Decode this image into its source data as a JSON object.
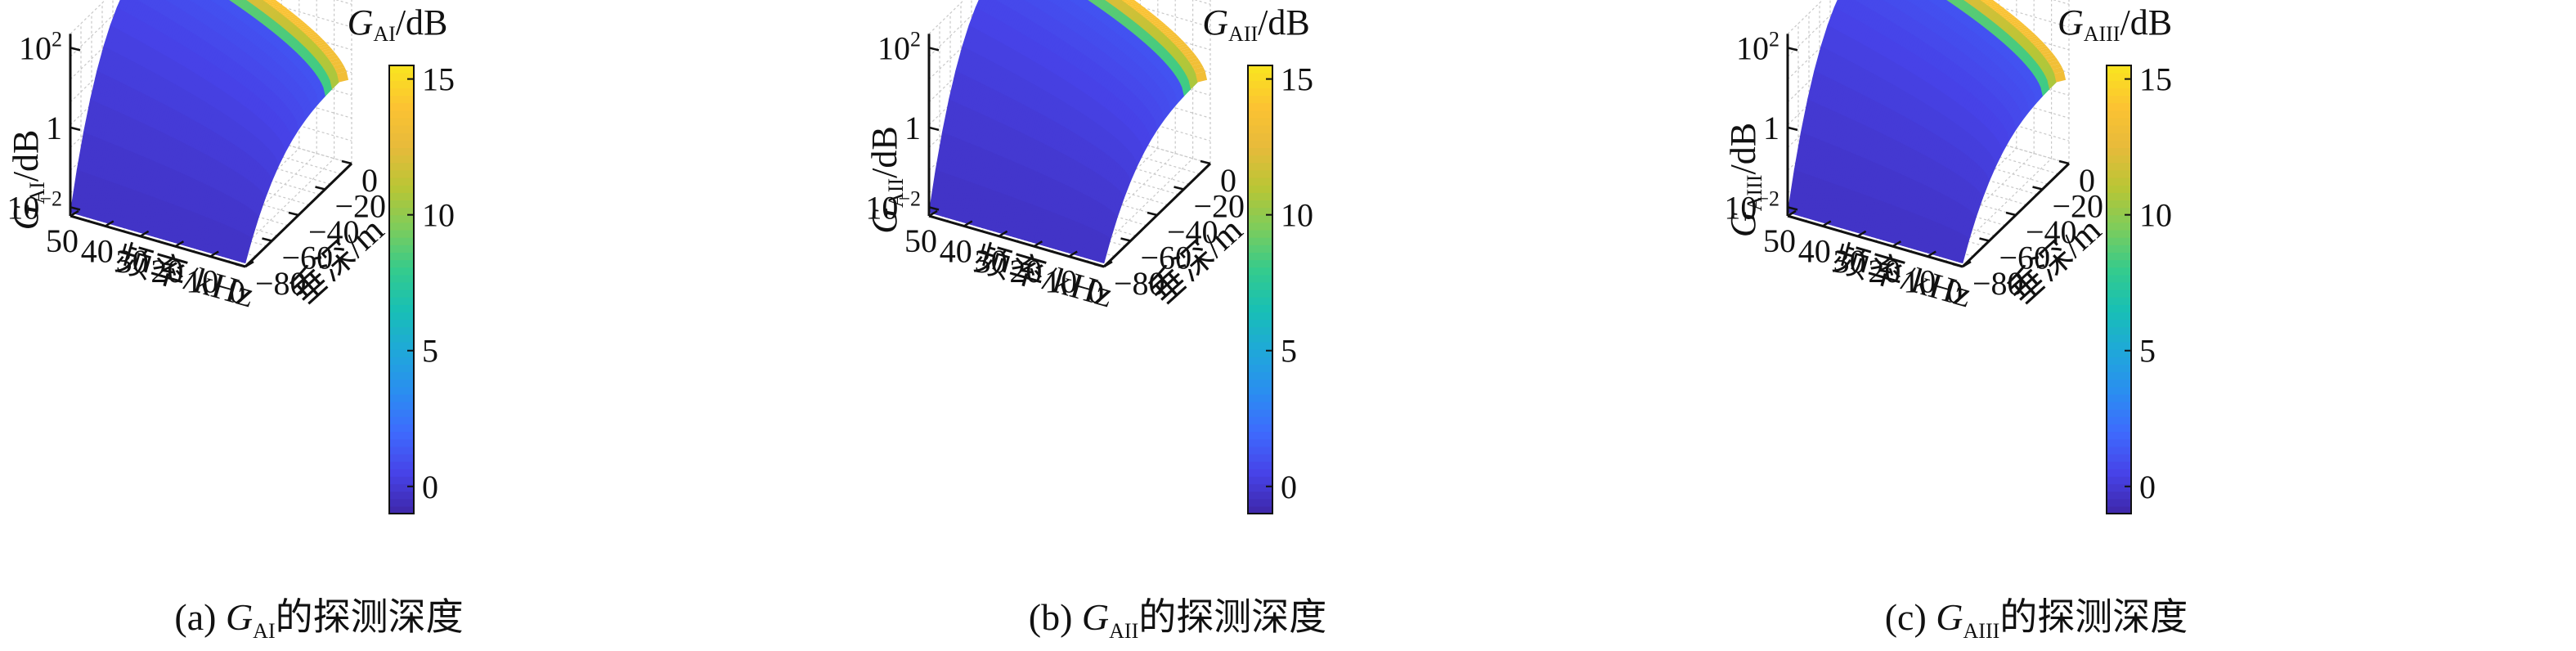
{
  "chart_data": [
    {
      "type": "surface",
      "panel_id": "a",
      "caption_prefix": "(a)",
      "caption_symbol": "G",
      "caption_subscript": "AI",
      "caption_suffix": "的探测深度",
      "zlabel_symbol": "G",
      "zlabel_subscript": "AI",
      "zlabel_unit": "/dB",
      "xlabel": "频率/kHz",
      "ylabel": "垂深/m",
      "x_ticks": [
        "0",
        "10",
        "20",
        "30",
        "40",
        "50"
      ],
      "y_ticks": [
        "0",
        "−20",
        "−40",
        "−60",
        "−80"
      ],
      "z_ticks": [
        {
          "base": "10",
          "exp": "−2"
        },
        {
          "base": "1",
          "exp": ""
        },
        {
          "base": "10",
          "exp": "2"
        }
      ],
      "xlim": [
        0,
        50
      ],
      "ylim": [
        -80,
        0
      ],
      "z_scale": "log",
      "zlim": [
        0.01,
        100
      ],
      "colorbar": {
        "label_symbol": "G",
        "label_subscript": "AI",
        "label_unit": "/dB",
        "ticks": [
          0,
          5,
          10,
          15
        ],
        "range": [
          -1,
          15.5
        ]
      },
      "grid": true
    },
    {
      "type": "surface",
      "panel_id": "b",
      "caption_prefix": "(b)",
      "caption_symbol": "G",
      "caption_subscript": "AII",
      "caption_suffix": "的探测深度",
      "zlabel_symbol": "G",
      "zlabel_subscript": "AII",
      "zlabel_unit": "/dB",
      "xlabel": "频率/kHz",
      "ylabel": "垂深/m",
      "x_ticks": [
        "0",
        "10",
        "20",
        "30",
        "40",
        "50"
      ],
      "y_ticks": [
        "0",
        "−20",
        "−40",
        "−60",
        "−80"
      ],
      "z_ticks": [
        {
          "base": "10",
          "exp": "−2"
        },
        {
          "base": "1",
          "exp": ""
        },
        {
          "base": "10",
          "exp": "2"
        }
      ],
      "xlim": [
        0,
        50
      ],
      "ylim": [
        -80,
        0
      ],
      "z_scale": "log",
      "zlim": [
        0.01,
        100
      ],
      "colorbar": {
        "label_symbol": "G",
        "label_subscript": "AII",
        "label_unit": "/dB",
        "ticks": [
          0,
          5,
          10,
          15
        ],
        "range": [
          -1,
          15.5
        ]
      },
      "grid": true
    },
    {
      "type": "surface",
      "panel_id": "c",
      "caption_prefix": "(c)",
      "caption_symbol": "G",
      "caption_subscript": "AIII",
      "caption_suffix": "的探测深度",
      "zlabel_symbol": "G",
      "zlabel_subscript": "AIII",
      "zlabel_unit": "/dB",
      "xlabel": "频率/kHz",
      "ylabel": "垂深/m",
      "x_ticks": [
        "0",
        "10",
        "20",
        "30",
        "40",
        "50"
      ],
      "y_ticks": [
        "0",
        "−20",
        "−40",
        "−60",
        "−80"
      ],
      "z_ticks": [
        {
          "base": "10",
          "exp": "−2"
        },
        {
          "base": "1",
          "exp": ""
        },
        {
          "base": "10",
          "exp": "2"
        }
      ],
      "xlim": [
        0,
        50
      ],
      "ylim": [
        -80,
        0
      ],
      "z_scale": "log",
      "zlim": [
        0.01,
        100
      ],
      "colorbar": {
        "label_symbol": "G",
        "label_subscript": "AIII",
        "label_unit": "/dB",
        "ticks": [
          0,
          5,
          10,
          15
        ],
        "range": [
          -1,
          15.5
        ]
      },
      "grid": true
    }
  ],
  "colors": {
    "colormap": [
      "#3e26a8",
      "#4743e8",
      "#3e6afe",
      "#2a8ef0",
      "#1fa8d9",
      "#18bfb5",
      "#35cb8c",
      "#7ccc5c",
      "#b9c635",
      "#e7ba3b",
      "#fcc332",
      "#f9e51f"
    ],
    "axis": "#111111",
    "grid": "#c8c8c8"
  }
}
